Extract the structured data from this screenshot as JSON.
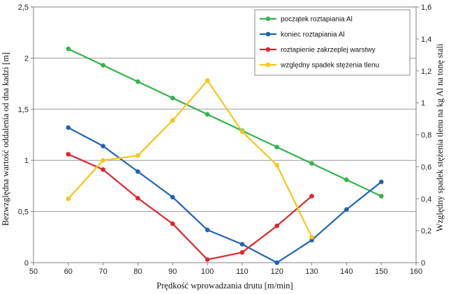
{
  "chart_data": {
    "type": "line",
    "xlabel": "Prędkość wprowadzania drutu [m/min]",
    "ylabel": "Bezwzględna  wartość oddalenia od dna kadzi  [m]",
    "y2label": "Względny  spadek stężenia tlenu   na  kg Al na tonę stali",
    "xlim": [
      50,
      160
    ],
    "xticks": [
      50,
      60,
      70,
      80,
      90,
      100,
      110,
      120,
      130,
      140,
      150,
      160
    ],
    "ylim": [
      0,
      2.5
    ],
    "yticks": [
      0,
      0.5,
      1,
      1.5,
      2,
      2.5
    ],
    "ytick_labels": [
      "0",
      "0,5",
      "1",
      "1,5",
      "2",
      "2,5"
    ],
    "y2lim": [
      0,
      1.6
    ],
    "y2ticks": [
      0,
      0.2,
      0.4,
      0.6,
      0.8,
      1.0,
      1.2,
      1.4,
      1.6
    ],
    "y2tick_labels": [
      "0",
      "0,2",
      "0,4",
      "0,6",
      "0,8",
      "1",
      "1,2",
      "1,4",
      "1,6"
    ],
    "grid": "horizontal",
    "legend_position": "top-right",
    "series": [
      {
        "name": "początek roztapiania Al",
        "color": "#33b34a",
        "axis": "left",
        "x": [
          60,
          70,
          80,
          90,
          100,
          110,
          120,
          130,
          140,
          150
        ],
        "values": [
          2.09,
          1.93,
          1.77,
          1.61,
          1.45,
          1.29,
          1.13,
          0.97,
          0.81,
          0.65
        ]
      },
      {
        "name": "koniec roztapiania Al",
        "color": "#1f63b5",
        "axis": "left",
        "x": [
          60,
          70,
          80,
          90,
          100,
          110,
          120,
          130,
          140,
          150
        ],
        "values": [
          1.32,
          1.14,
          0.89,
          0.64,
          0.32,
          0.18,
          0.0,
          0.22,
          0.52,
          0.79
        ]
      },
      {
        "name": "roztapienie zakrzeplej warstwy",
        "color": "#e1252b",
        "axis": "left",
        "x": [
          60,
          70,
          80,
          90,
          100,
          110,
          120,
          130
        ],
        "values": [
          1.06,
          0.91,
          0.63,
          0.38,
          0.03,
          0.1,
          0.36,
          0.65
        ]
      },
      {
        "name": "względny spadek stężenia tlenu",
        "color": "#f5c518",
        "axis": "right",
        "x": [
          60,
          70,
          80,
          90,
          100,
          110,
          120,
          130
        ],
        "values": [
          0.4,
          0.64,
          0.67,
          0.89,
          1.14,
          0.82,
          0.61,
          0.16
        ]
      }
    ]
  }
}
